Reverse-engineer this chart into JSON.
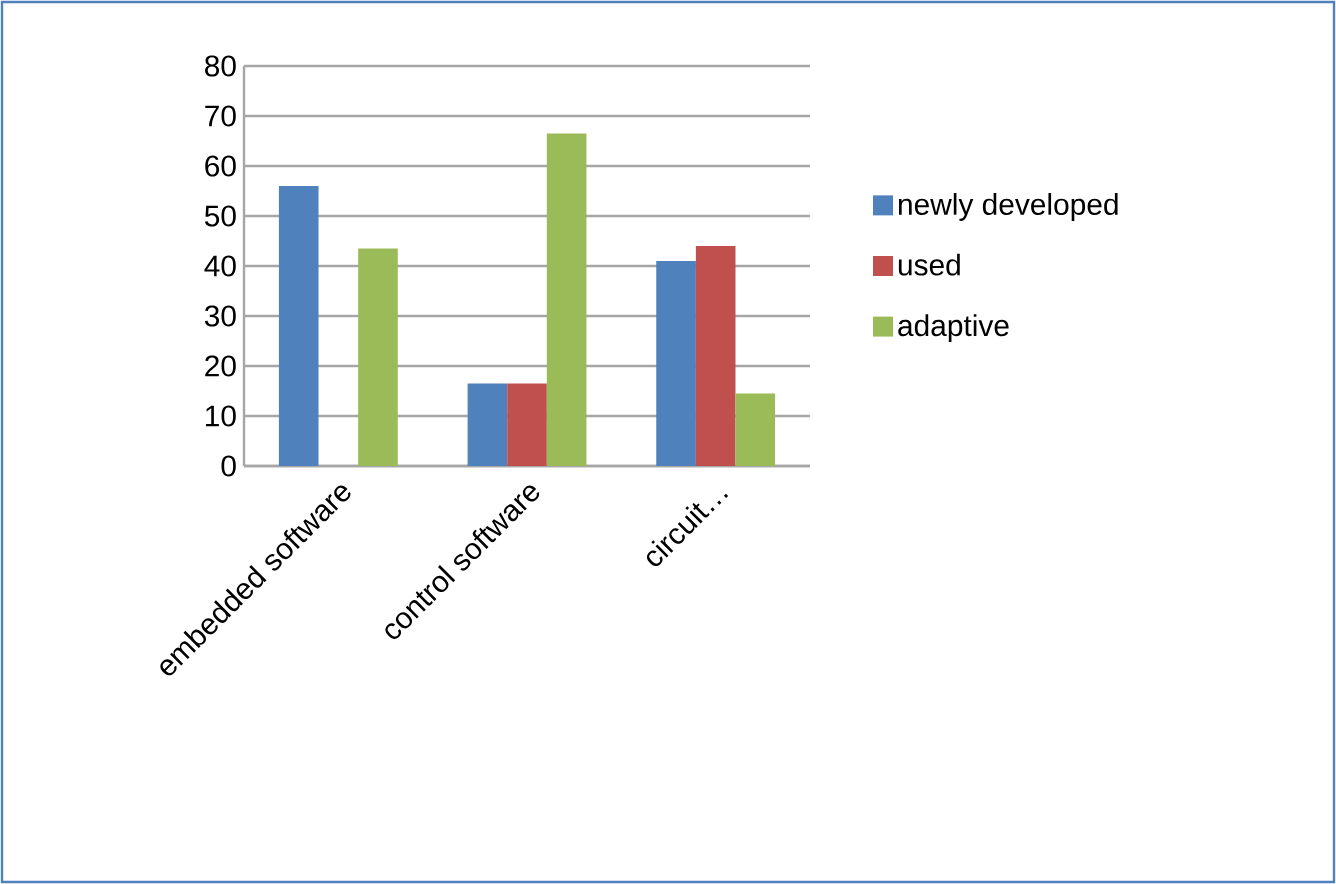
{
  "chart_data": {
    "type": "bar",
    "categories": [
      "embedded software",
      "control software",
      "circuit…"
    ],
    "series": [
      {
        "name": "newly developed",
        "color": "#4f81bd",
        "values": [
          56,
          16.5,
          41
        ]
      },
      {
        "name": "used",
        "color": "#c0504d",
        "values": [
          null,
          16.5,
          44
        ]
      },
      {
        "name": "adaptive",
        "color": "#9bbb59",
        "values": [
          43.5,
          66.5,
          14.5
        ]
      }
    ],
    "ylim": [
      0,
      80
    ],
    "yticks": [
      0,
      10,
      20,
      30,
      40,
      50,
      60,
      70,
      80
    ],
    "grid": "y",
    "legend": "right"
  }
}
